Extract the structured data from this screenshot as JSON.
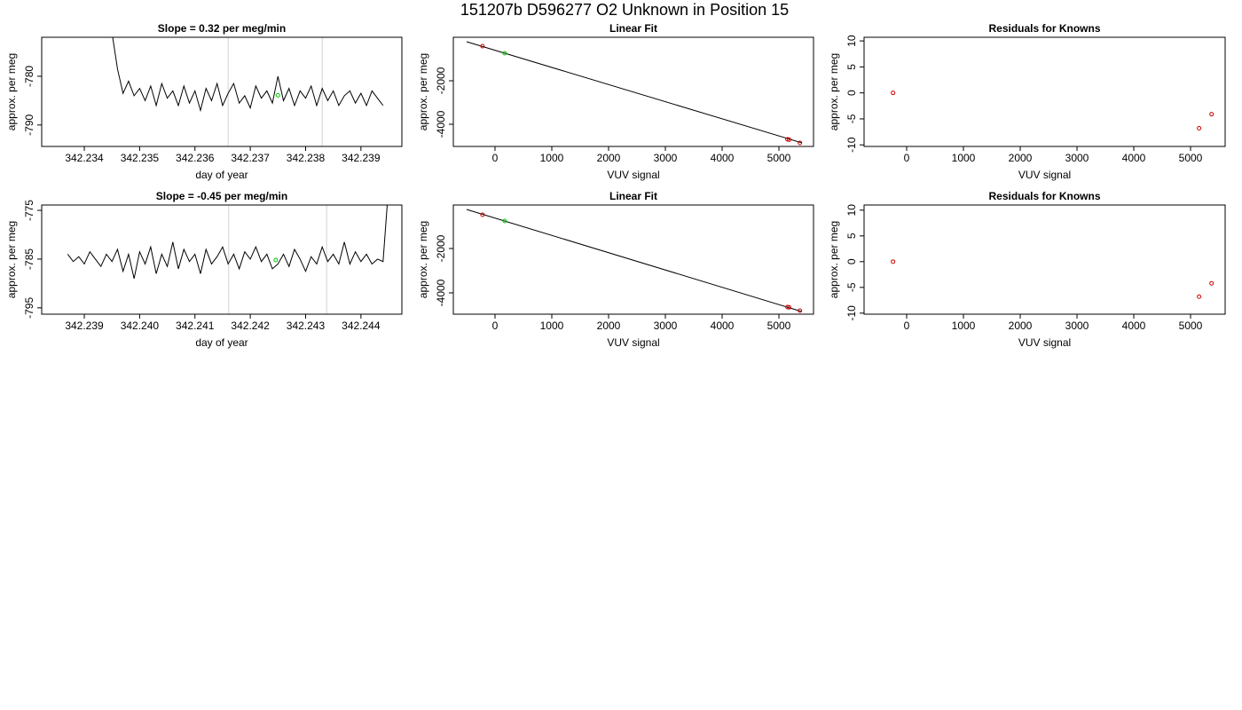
{
  "title": "151207b     D596277   O2 Unknown in Position  15",
  "chart_data": [
    {
      "type": "line",
      "title": "Slope =  0.32  per meg/min",
      "x_label": "day of year",
      "y_label": "approx. per meg",
      "xlim": [
        342.23323,
        342.23974
      ],
      "ylim": [
        -794.4,
        -772
      ],
      "xticks": [
        342.234,
        342.235,
        342.236,
        342.237,
        342.238,
        342.239
      ],
      "yticks": [
        -780,
        -790
      ],
      "vlines": [
        342.2366,
        342.2383
      ],
      "vline_color": "#d3d3d3",
      "series": [
        {
          "mode": "line",
          "color": "#000000",
          "x": [
            342.2345,
            342.2346,
            342.2347,
            342.2348,
            342.2349,
            342.235,
            342.2351,
            342.2352,
            342.2353,
            342.2354,
            342.2355,
            342.2356,
            342.2357,
            342.2358,
            342.2359,
            342.236,
            342.2361,
            342.2362,
            342.2363,
            342.2364,
            342.2365,
            342.2366,
            342.2367,
            342.2368,
            342.2369,
            342.237,
            342.2371,
            342.2372,
            342.2373,
            342.2374,
            342.2375,
            342.2376,
            342.2377,
            342.2378,
            342.2379,
            342.238,
            342.2381,
            342.2382,
            342.2383,
            342.2384,
            342.2385,
            342.2386,
            342.2387,
            342.2388,
            342.2389,
            342.239,
            342.2391,
            342.2392,
            342.2393,
            342.2394
          ],
          "values": [
            -771,
            -778.5,
            -783.5,
            -781,
            -784,
            -782.5,
            -785,
            -782,
            -786,
            -781.5,
            -784.5,
            -783,
            -786,
            -782,
            -785.5,
            -783,
            -787,
            -782.5,
            -785,
            -781.5,
            -786,
            -783.5,
            -781.5,
            -785.5,
            -784,
            -786.5,
            -782,
            -784.5,
            -783,
            -785.5,
            -780,
            -785,
            -782.5,
            -786,
            -783,
            -784.5,
            -782,
            -786,
            -782.5,
            -785,
            -783,
            -786,
            -784,
            -783,
            -785.5,
            -783.5,
            -786,
            -783,
            -784.5,
            -786
          ]
        },
        {
          "mode": "points",
          "color": "#00cc00",
          "x": [
            342.2375
          ],
          "values": [
            -783.9
          ]
        }
      ]
    },
    {
      "type": "scatter",
      "title": "Linear Fit",
      "x_label": "VUV signal",
      "y_label": "approx. per meg",
      "xlim": [
        -734,
        5609
      ],
      "ylim": [
        -5020,
        0
      ],
      "xticks": [
        0,
        1000,
        2000,
        3000,
        4000,
        5000
      ],
      "yticks": [
        -2000,
        -4000
      ],
      "series": [
        {
          "mode": "line",
          "color": "#000000",
          "x": [
            -500,
            5406
          ],
          "values": [
            -204,
            -4857
          ]
        },
        {
          "mode": "points",
          "color": "#cc0000",
          "x": [
            -220,
            5150,
            5180,
            5370
          ],
          "values": [
            -408,
            -4694,
            -4710,
            -4857
          ]
        },
        {
          "mode": "points",
          "color": "#00cc00",
          "x": [
            170
          ],
          "values": [
            -735
          ]
        }
      ]
    },
    {
      "type": "scatter",
      "title": "Residuals for Knowns",
      "x_label": "VUV signal",
      "y_label": "approx. per meg",
      "xlim": [
        -750,
        5609
      ],
      "ylim": [
        -10.3,
        10.7
      ],
      "xticks": [
        0,
        1000,
        2000,
        3000,
        4000,
        5000
      ],
      "yticks": [
        10,
        5,
        0,
        -5,
        -10
      ],
      "series": [
        {
          "mode": "points",
          "color": "#cc0000",
          "x": [
            -240,
            5150,
            5370
          ],
          "values": [
            0,
            -6.8,
            -4.1
          ]
        }
      ]
    },
    {
      "type": "line",
      "title": "Slope =  -0.45  per meg/min",
      "x_label": "day of year",
      "y_label": "approx. per meg",
      "xlim": [
        342.23823,
        342.24474
      ],
      "ylim": [
        -796.3,
        -773.9
      ],
      "xticks": [
        342.239,
        {
          "value": 342.24,
          "label": "342.240"
        },
        342.241,
        342.242,
        342.243,
        342.244
      ],
      "yticks": [
        -775,
        -785,
        -795
      ],
      "vlines": [
        342.24161,
        342.24338
      ],
      "vline_color": "#d3d3d3",
      "series": [
        {
          "mode": "line",
          "color": "#000000",
          "x": [
            342.2387,
            342.2388,
            342.2389,
            342.239,
            342.2391,
            342.2392,
            342.2393,
            342.2394,
            342.2395,
            342.2396,
            342.2397,
            342.2398,
            342.2399,
            342.24,
            342.2401,
            342.2402,
            342.2403,
            342.2404,
            342.2405,
            342.2406,
            342.2407,
            342.2408,
            342.2409,
            342.241,
            342.2411,
            342.2412,
            342.2413,
            342.2414,
            342.2415,
            342.2416,
            342.2417,
            342.2418,
            342.2419,
            342.242,
            342.2421,
            342.2422,
            342.2423,
            342.2424,
            342.2425,
            342.2426,
            342.2427,
            342.2428,
            342.2429,
            342.243,
            342.2431,
            342.2432,
            342.2433,
            342.2434,
            342.2435,
            342.2436,
            342.2437,
            342.2438,
            342.2439,
            342.244,
            342.2441,
            342.2442,
            342.2443,
            342.2444,
            342.2445
          ],
          "values": [
            -784,
            -785.5,
            -784.5,
            -786,
            -783.5,
            -785,
            -786.5,
            -784,
            -785.5,
            -783,
            -787.5,
            -784,
            -789,
            -783.5,
            -786,
            -782.5,
            -788,
            -784,
            -786.5,
            -781.5,
            -787,
            -783,
            -785.5,
            -784,
            -788,
            -783,
            -786,
            -784.5,
            -782.5,
            -786,
            -784,
            -787,
            -783.5,
            -785,
            -782.5,
            -785.5,
            -784,
            -787,
            -786,
            -784,
            -786.5,
            -783,
            -785,
            -787.5,
            -784.5,
            -786,
            -782.5,
            -785.5,
            -784,
            -786,
            -781.5,
            -786,
            -783.5,
            -785.5,
            -784,
            -786,
            -785,
            -785.5,
            -770
          ]
        },
        {
          "mode": "points",
          "color": "#00cc00",
          "x": [
            342.24246
          ],
          "values": [
            -785.2
          ]
        }
      ]
    },
    {
      "type": "scatter",
      "title": "Linear Fit",
      "x_label": "VUV signal",
      "y_label": "approx. per meg",
      "xlim": [
        -734,
        5609
      ],
      "ylim": [
        -4960,
        -40
      ],
      "xticks": [
        0,
        1000,
        2000,
        3000,
        4000,
        5000
      ],
      "yticks": [
        -2000,
        -4000
      ],
      "series": [
        {
          "mode": "line",
          "color": "#000000",
          "x": [
            -500,
            5400
          ],
          "values": [
            -240,
            -4840
          ]
        },
        {
          "mode": "points",
          "color": "#cc0000",
          "x": [
            -220,
            5150,
            5180,
            5370
          ],
          "values": [
            -480,
            -4640,
            -4650,
            -4800
          ]
        },
        {
          "mode": "points",
          "color": "#00cc00",
          "x": [
            170
          ],
          "values": [
            -760
          ]
        }
      ]
    },
    {
      "type": "scatter",
      "title": "Residuals for Knowns",
      "x_label": "VUV signal",
      "y_label": "approx. per meg",
      "xlim": [
        -750,
        5609
      ],
      "ylim": [
        -10.2,
        11
      ],
      "xticks": [
        0,
        1000,
        2000,
        3000,
        4000,
        5000
      ],
      "yticks": [
        10,
        5,
        0,
        -5,
        -10
      ],
      "series": [
        {
          "mode": "points",
          "color": "#cc0000",
          "x": [
            -240,
            5150,
            5370
          ],
          "values": [
            0,
            -6.8,
            -4.2
          ]
        }
      ]
    }
  ]
}
